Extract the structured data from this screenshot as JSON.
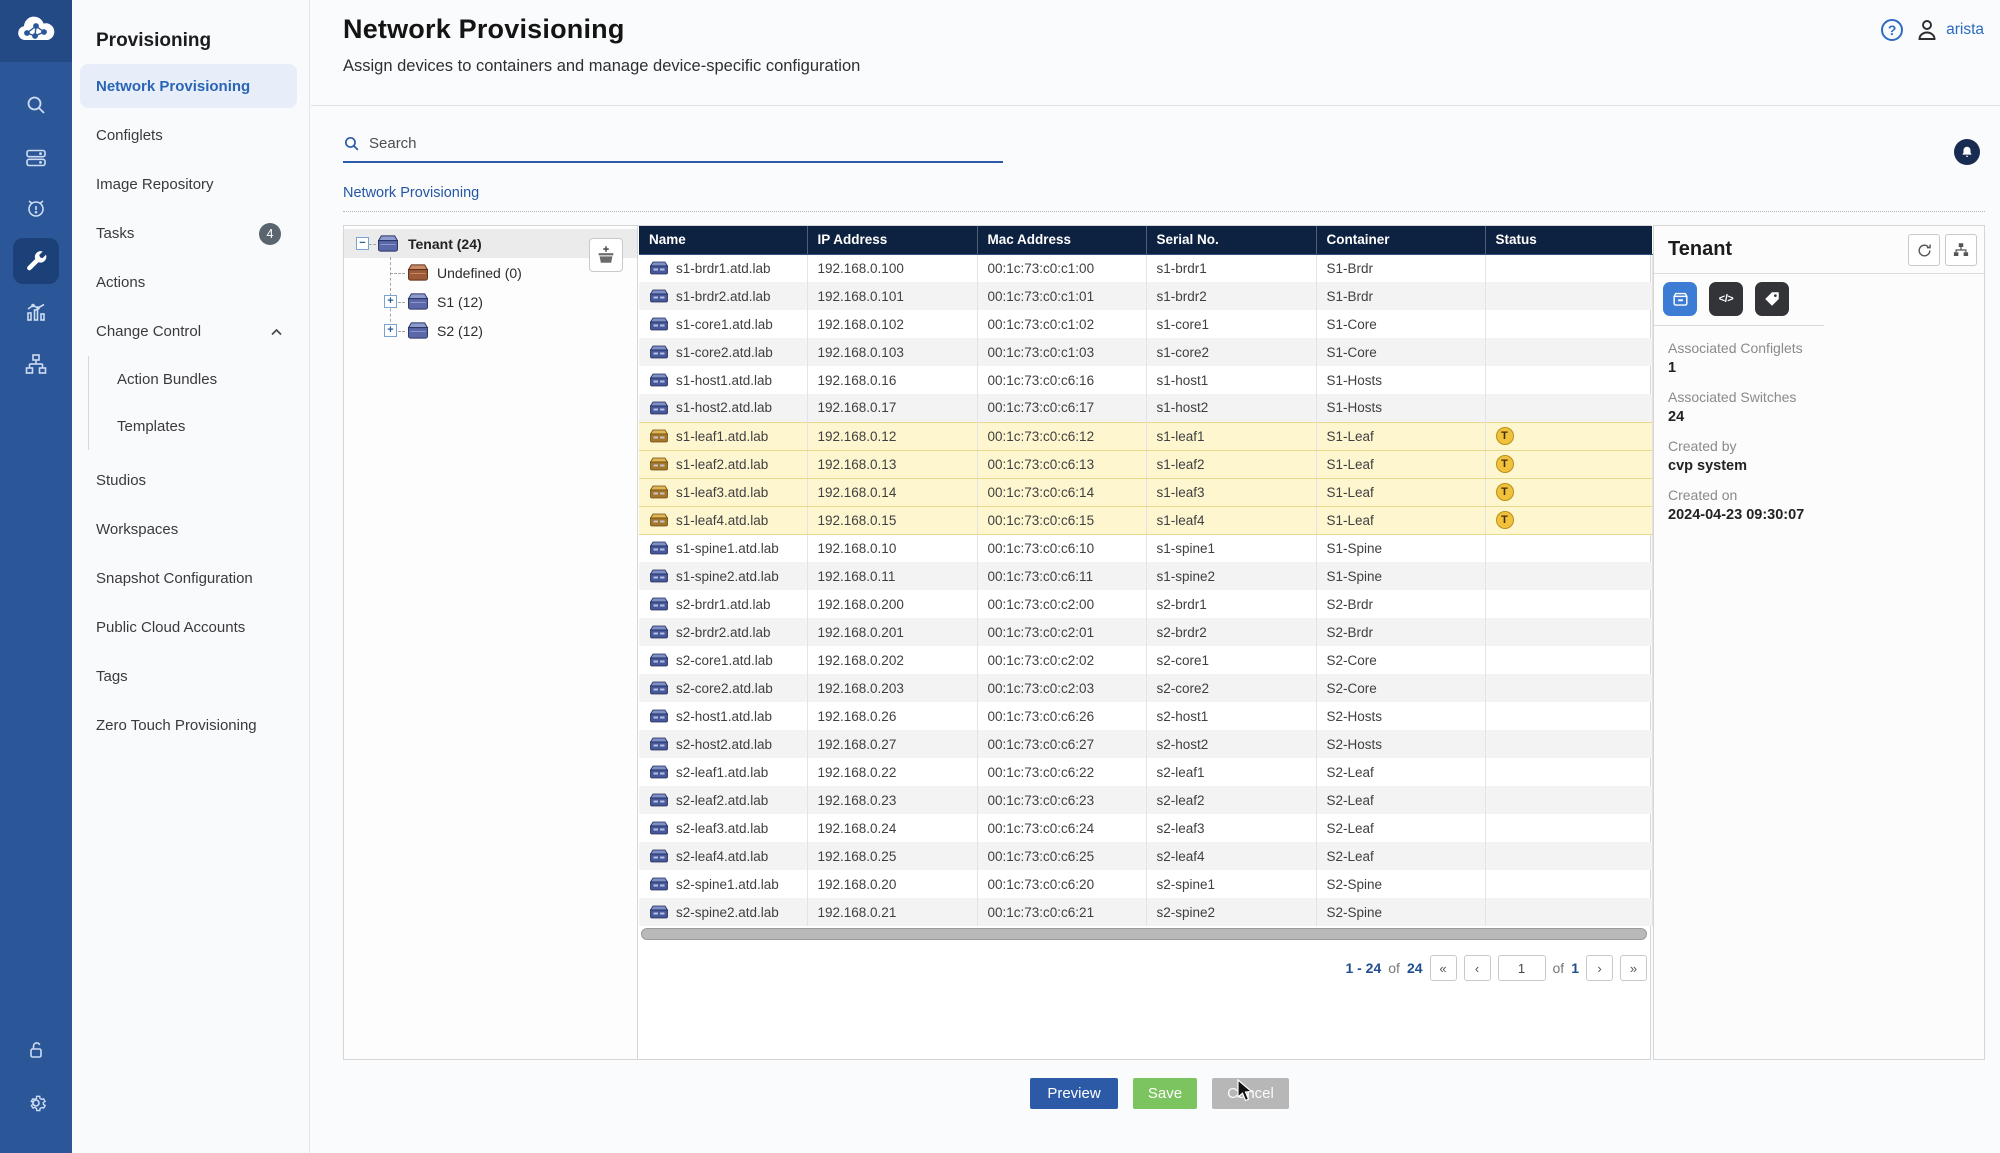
{
  "rail": {
    "icons_top": [
      "arista-cloud-logo",
      "search",
      "devices",
      "events",
      "provisioning-wrench",
      "metrics",
      "topology"
    ],
    "icons_bottom": [
      "lock-open",
      "settings-gear"
    ],
    "active_icon": "provisioning-wrench"
  },
  "sidebar": {
    "title": "Provisioning",
    "items": [
      {
        "label": "Network Provisioning",
        "active": true
      },
      {
        "label": "Configlets"
      },
      {
        "label": "Image Repository"
      },
      {
        "label": "Tasks",
        "badge": "4"
      },
      {
        "label": "Actions"
      },
      {
        "label": "Change Control",
        "chevron": true
      },
      {
        "label": "Action Bundles",
        "sub": true
      },
      {
        "label": "Templates",
        "sub": true
      },
      {
        "label": "Studios",
        "aftersub": true
      },
      {
        "label": "Workspaces"
      },
      {
        "label": "Snapshot Configuration"
      },
      {
        "label": "Public Cloud Accounts"
      },
      {
        "label": "Tags"
      },
      {
        "label": "Zero Touch Provisioning"
      }
    ]
  },
  "header": {
    "title": "Network Provisioning",
    "subtitle": "Assign devices to containers and manage device-specific configuration",
    "user": "arista",
    "help": "?"
  },
  "search": {
    "placeholder": "Search"
  },
  "breadcrumb": "Network Provisioning",
  "tree": {
    "root": {
      "label": "Tenant (24)",
      "expand": "minus"
    },
    "children": [
      {
        "label": "Undefined (0)",
        "variant": "brown",
        "expand": "none"
      },
      {
        "label": "S1 (12)",
        "variant": "blue",
        "expand": "plus"
      },
      {
        "label": "S2 (12)",
        "variant": "blue",
        "expand": "plus"
      }
    ]
  },
  "table": {
    "columns": [
      "Name",
      "IP Address",
      "Mac Address",
      "Serial No.",
      "Container",
      "Status"
    ],
    "rows": [
      {
        "name": "s1-brdr1.atd.lab",
        "ip": "192.168.0.100",
        "mac": "00:1c:73:c0:c1:00",
        "serial": "s1-brdr1",
        "container": "S1-Brdr",
        "status": ""
      },
      {
        "name": "s1-brdr2.atd.lab",
        "ip": "192.168.0.101",
        "mac": "00:1c:73:c0:c1:01",
        "serial": "s1-brdr2",
        "container": "S1-Brdr",
        "status": ""
      },
      {
        "name": "s1-core1.atd.lab",
        "ip": "192.168.0.102",
        "mac": "00:1c:73:c0:c1:02",
        "serial": "s1-core1",
        "container": "S1-Core",
        "status": ""
      },
      {
        "name": "s1-core2.atd.lab",
        "ip": "192.168.0.103",
        "mac": "00:1c:73:c0:c1:03",
        "serial": "s1-core2",
        "container": "S1-Core",
        "status": ""
      },
      {
        "name": "s1-host1.atd.lab",
        "ip": "192.168.0.16",
        "mac": "00:1c:73:c0:c6:16",
        "serial": "s1-host1",
        "container": "S1-Hosts",
        "status": ""
      },
      {
        "name": "s1-host2.atd.lab",
        "ip": "192.168.0.17",
        "mac": "00:1c:73:c0:c6:17",
        "serial": "s1-host2",
        "container": "S1-Hosts",
        "status": ""
      },
      {
        "name": "s1-leaf1.atd.lab",
        "ip": "192.168.0.12",
        "mac": "00:1c:73:c0:c6:12",
        "serial": "s1-leaf1",
        "container": "S1-Leaf",
        "status": "T"
      },
      {
        "name": "s1-leaf2.atd.lab",
        "ip": "192.168.0.13",
        "mac": "00:1c:73:c0:c6:13",
        "serial": "s1-leaf2",
        "container": "S1-Leaf",
        "status": "T"
      },
      {
        "name": "s1-leaf3.atd.lab",
        "ip": "192.168.0.14",
        "mac": "00:1c:73:c0:c6:14",
        "serial": "s1-leaf3",
        "container": "S1-Leaf",
        "status": "T"
      },
      {
        "name": "s1-leaf4.atd.lab",
        "ip": "192.168.0.15",
        "mac": "00:1c:73:c0:c6:15",
        "serial": "s1-leaf4",
        "container": "S1-Leaf",
        "status": "T"
      },
      {
        "name": "s1-spine1.atd.lab",
        "ip": "192.168.0.10",
        "mac": "00:1c:73:c0:c6:10",
        "serial": "s1-spine1",
        "container": "S1-Spine",
        "status": ""
      },
      {
        "name": "s1-spine2.atd.lab",
        "ip": "192.168.0.11",
        "mac": "00:1c:73:c0:c6:11",
        "serial": "s1-spine2",
        "container": "S1-Spine",
        "status": ""
      },
      {
        "name": "s2-brdr1.atd.lab",
        "ip": "192.168.0.200",
        "mac": "00:1c:73:c0:c2:00",
        "serial": "s2-brdr1",
        "container": "S2-Brdr",
        "status": ""
      },
      {
        "name": "s2-brdr2.atd.lab",
        "ip": "192.168.0.201",
        "mac": "00:1c:73:c0:c2:01",
        "serial": "s2-brdr2",
        "container": "S2-Brdr",
        "status": ""
      },
      {
        "name": "s2-core1.atd.lab",
        "ip": "192.168.0.202",
        "mac": "00:1c:73:c0:c2:02",
        "serial": "s2-core1",
        "container": "S2-Core",
        "status": ""
      },
      {
        "name": "s2-core2.atd.lab",
        "ip": "192.168.0.203",
        "mac": "00:1c:73:c0:c2:03",
        "serial": "s2-core2",
        "container": "S2-Core",
        "status": ""
      },
      {
        "name": "s2-host1.atd.lab",
        "ip": "192.168.0.26",
        "mac": "00:1c:73:c0:c6:26",
        "serial": "s2-host1",
        "container": "S2-Hosts",
        "status": ""
      },
      {
        "name": "s2-host2.atd.lab",
        "ip": "192.168.0.27",
        "mac": "00:1c:73:c0:c6:27",
        "serial": "s2-host2",
        "container": "S2-Hosts",
        "status": ""
      },
      {
        "name": "s2-leaf1.atd.lab",
        "ip": "192.168.0.22",
        "mac": "00:1c:73:c0:c6:22",
        "serial": "s2-leaf1",
        "container": "S2-Leaf",
        "status": ""
      },
      {
        "name": "s2-leaf2.atd.lab",
        "ip": "192.168.0.23",
        "mac": "00:1c:73:c0:c6:23",
        "serial": "s2-leaf2",
        "container": "S2-Leaf",
        "status": ""
      },
      {
        "name": "s2-leaf3.atd.lab",
        "ip": "192.168.0.24",
        "mac": "00:1c:73:c0:c6:24",
        "serial": "s2-leaf3",
        "container": "S2-Leaf",
        "status": ""
      },
      {
        "name": "s2-leaf4.atd.lab",
        "ip": "192.168.0.25",
        "mac": "00:1c:73:c0:c6:25",
        "serial": "s2-leaf4",
        "container": "S2-Leaf",
        "status": ""
      },
      {
        "name": "s2-spine1.atd.lab",
        "ip": "192.168.0.20",
        "mac": "00:1c:73:c0:c6:20",
        "serial": "s2-spine1",
        "container": "S2-Spine",
        "status": ""
      },
      {
        "name": "s2-spine2.atd.lab",
        "ip": "192.168.0.21",
        "mac": "00:1c:73:c0:c6:21",
        "serial": "s2-spine2",
        "container": "S2-Spine",
        "status": ""
      }
    ]
  },
  "pagination": {
    "range": "1 - 24",
    "of_label": "of",
    "total": "24",
    "page": "1",
    "pages_of_label": "of",
    "pages": "1",
    "first": "«",
    "prev": "‹",
    "next": "›",
    "last": "»"
  },
  "details": {
    "title": "Tenant",
    "tabs": [
      "device-tab",
      "code-tab",
      "tag-tab"
    ],
    "fields": [
      {
        "label": "Associated Configlets",
        "value": "1"
      },
      {
        "label": "Associated Switches",
        "value": "24"
      },
      {
        "label": "Created by",
        "value": "cvp system"
      },
      {
        "label": "Created on",
        "value": "2024-04-23 09:30:07"
      }
    ]
  },
  "actions": {
    "preview": "Preview",
    "save": "Save",
    "cancel": "Cancel"
  },
  "colors": {
    "rail_blue": "#2b5698",
    "accent_blue": "#2a65b5",
    "table_header": "#0d2140",
    "row_highlight": "#fdf6cf",
    "status_gold": "#f1c13b",
    "save_green": "#7cc45f",
    "preview_blue": "#2d5aa7",
    "cancel_gray": "#b7b7b7"
  }
}
